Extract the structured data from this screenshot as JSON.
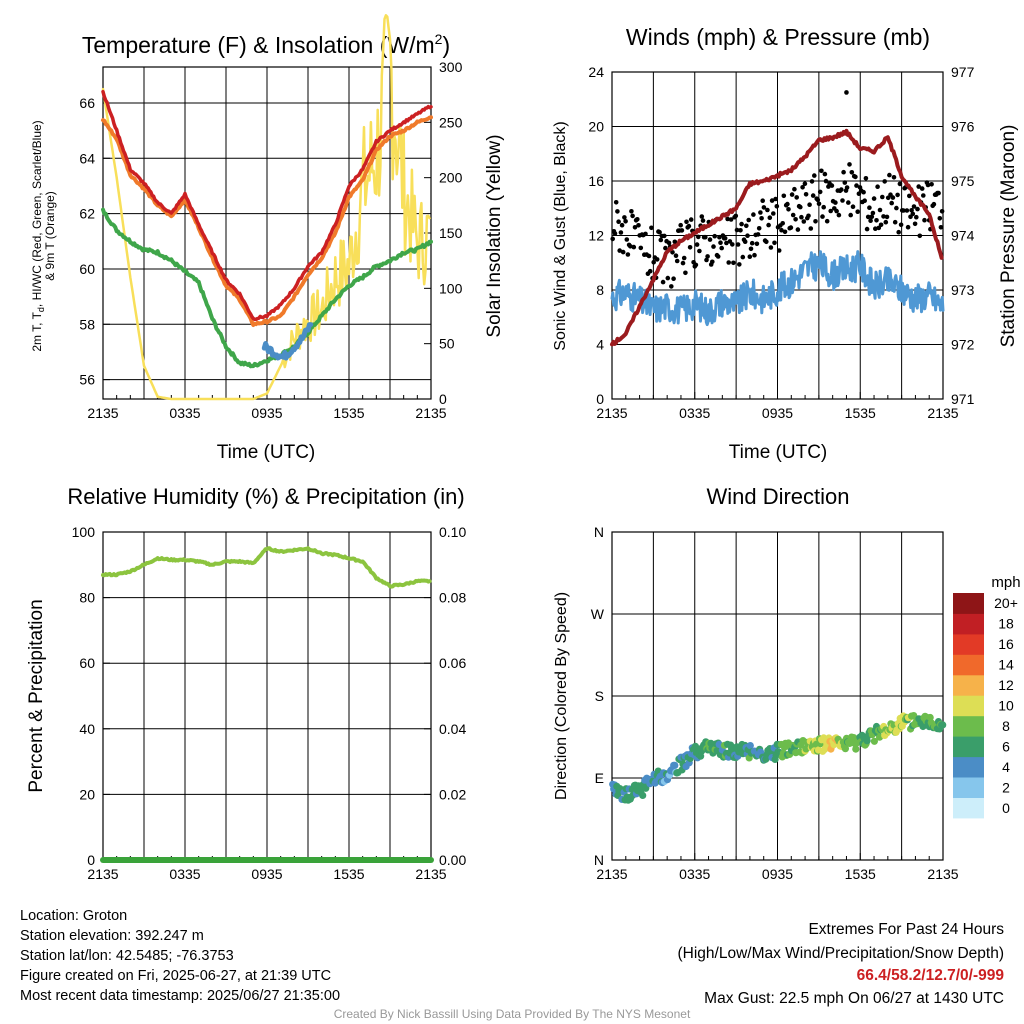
{
  "panels": {
    "temperature": {
      "title": "Temperature (F) & Insolation (W/m",
      "title_sup": "2",
      "title_end": ")",
      "ylabel_lines": [
        "2m T, T",
        "d",
        ", HI/WC (Red, Green, Scarlet/Blue)",
        "& 9m T (Orange)"
      ],
      "y2label": "Solar Insolation (Yellow)",
      "xlabel": "Time (UTC)",
      "xticks": [
        "2135",
        "0335",
        "0935",
        "1535",
        "2135"
      ],
      "yticks": [
        "56",
        "58",
        "60",
        "62",
        "64",
        "66"
      ],
      "y2ticks": [
        "0",
        "50",
        "100",
        "150",
        "200",
        "250",
        "300"
      ]
    },
    "winds": {
      "title": "Winds (mph) & Pressure (mb)",
      "ylabel": "Sonic Wind & Gust (Blue, Black)",
      "y2label": "Station Pressure (Maroon)",
      "xlabel": "Time (UTC)",
      "xticks": [
        "2135",
        "0335",
        "0935",
        "1535",
        "2135"
      ],
      "yticks": [
        "0",
        "4",
        "8",
        "12",
        "16",
        "20",
        "24"
      ],
      "y2ticks": [
        "971",
        "972",
        "973",
        "974",
        "975",
        "976",
        "977"
      ]
    },
    "humidity": {
      "title": "Relative Humidity (%) & Precipitation (in)",
      "ylabel": "Percent & Precipitation",
      "xticks": [
        "2135",
        "0335",
        "0935",
        "1535",
        "2135"
      ],
      "yticks": [
        "0",
        "20",
        "40",
        "60",
        "80",
        "100"
      ],
      "y2ticks": [
        "0.00",
        "0.02",
        "0.04",
        "0.06",
        "0.08",
        "0.10"
      ]
    },
    "direction": {
      "title": "Wind Direction",
      "ylabel": "Direction (Colored By Speed)",
      "xticks": [
        "2135",
        "0335",
        "0935",
        "1535",
        "2135"
      ],
      "yticks": [
        "N",
        "E",
        "S",
        "W",
        "N"
      ],
      "colorbar_title": "mph",
      "colorbar_labels": [
        "0",
        "2",
        "4",
        "6",
        "8",
        "10",
        "12",
        "14",
        "16",
        "18",
        "20+"
      ],
      "colorbar_colors": [
        "#cdeefa",
        "#86c6ec",
        "#4b8dc6",
        "#3a9e6a",
        "#6cbc4c",
        "#ddde55",
        "#f6b24a",
        "#f0692b",
        "#e23a26",
        "#c11f24",
        "#8e1517"
      ]
    }
  },
  "colors": {
    "temp_red": "#cc2022",
    "temp_orange": "#f07a2a",
    "dew_green": "#3fa64a",
    "windchill_blue": "#4b8dc6",
    "solar_yellow": "#f8df5a",
    "wind_blue": "#4f98d4",
    "gust_black": "#000000",
    "pressure_maroon": "#9b1b1e",
    "rh_green": "#8cc43f",
    "precip_green": "#3aa33a",
    "extremes_red": "#cc2022"
  },
  "chart_data": [
    {
      "type": "line",
      "title": "Temperature (F) & Insolation (W/m2)",
      "xlabel": "Time (UTC)",
      "ylabel": "2m T, Td, HI/WC (Red, Green, Scarlet/Blue) & 9m T (Orange)",
      "y2label": "Solar Insolation (Yellow)",
      "x_ticks": [
        "2135",
        "0335",
        "0935",
        "1535",
        "2135"
      ],
      "x_hours": [
        0,
        1,
        2,
        3,
        4,
        5,
        6,
        7,
        8,
        9,
        10,
        11,
        12,
        13,
        14,
        15,
        16,
        17,
        18,
        19,
        20,
        21,
        22,
        23,
        24
      ],
      "ylim": [
        55.3,
        67.3
      ],
      "y2lim": [
        0,
        300
      ],
      "series": [
        {
          "name": "2m T",
          "color": "#cc2022",
          "axis": "left",
          "values": [
            66.4,
            65.0,
            63.6,
            63.1,
            62.4,
            62.0,
            62.7,
            61.6,
            60.6,
            59.6,
            59.1,
            58.2,
            58.3,
            58.7,
            59.3,
            60.1,
            60.6,
            61.6,
            63.0,
            63.6,
            64.6,
            65.0,
            65.3,
            65.6,
            65.9
          ]
        },
        {
          "name": "9m T",
          "color": "#f07a2a",
          "axis": "left",
          "values": [
            65.4,
            64.7,
            63.4,
            62.9,
            62.3,
            61.9,
            62.5,
            61.5,
            60.4,
            59.4,
            58.9,
            58.0,
            58.1,
            58.3,
            59.0,
            59.8,
            60.4,
            61.3,
            62.6,
            63.2,
            64.3,
            64.8,
            65.0,
            65.3,
            65.5
          ]
        },
        {
          "name": "Td",
          "color": "#3fa64a",
          "axis": "left",
          "values": [
            62.1,
            61.4,
            61.0,
            60.7,
            60.6,
            60.3,
            59.9,
            59.5,
            58.2,
            57.2,
            56.6,
            56.5,
            56.7,
            56.9,
            57.2,
            57.7,
            58.3,
            58.9,
            59.4,
            59.7,
            60.1,
            60.3,
            60.6,
            60.7,
            61.0
          ]
        },
        {
          "name": "HI/WC",
          "color": "#4b8dc6",
          "axis": "left",
          "x_hours": [
            11.8,
            12.5,
            13.2,
            14.0,
            14.6,
            15.2
          ],
          "values": [
            57.2,
            57.0,
            56.8,
            57.2,
            57.5,
            58.0
          ]
        },
        {
          "name": "Solar Insolation",
          "color": "#f8df5a",
          "axis": "right",
          "values": [
            280,
            200,
            110,
            30,
            2,
            0,
            0,
            0,
            0,
            0,
            0,
            0,
            5,
            30,
            55,
            70,
            80,
            110,
            120,
            190,
            220,
            300,
            190,
            140,
            150
          ]
        }
      ]
    },
    {
      "type": "line",
      "title": "Winds (mph) & Pressure (mb)",
      "xlabel": "Time (UTC)",
      "ylabel": "Sonic Wind & Gust (Blue, Black)",
      "y2label": "Station Pressure (Maroon)",
      "x_ticks": [
        "2135",
        "0335",
        "0935",
        "1535",
        "2135"
      ],
      "x_hours": [
        0,
        1,
        2,
        3,
        4,
        5,
        6,
        7,
        8,
        9,
        10,
        11,
        12,
        13,
        14,
        15,
        16,
        17,
        18,
        19,
        20,
        21,
        22,
        23,
        24
      ],
      "ylim": [
        0,
        24
      ],
      "y2lim": [
        971,
        977
      ],
      "series": [
        {
          "name": "Sonic Wind",
          "color": "#4f98d4",
          "axis": "left",
          "values": [
            7.5,
            7.8,
            7.2,
            6.6,
            6.8,
            6.5,
            7.0,
            6.4,
            7.2,
            6.9,
            7.8,
            7.3,
            8.0,
            8.6,
            9.5,
            9.9,
            9.1,
            9.5,
            9.8,
            8.2,
            8.6,
            8.0,
            7.4,
            7.6,
            6.8
          ]
        },
        {
          "name": "Gust",
          "color": "#000000",
          "axis": "left",
          "style": "scatter",
          "values": [
            13.0,
            12.5,
            11.0,
            10.5,
            10.0,
            10.8,
            11.5,
            12.0,
            11.0,
            11.6,
            11.8,
            13.0,
            12.8,
            13.5,
            14.2,
            14.8,
            15.0,
            15.3,
            15.0,
            13.8,
            15.0,
            14.0,
            13.5,
            14.2,
            14.5
          ],
          "max": {
            "value": 22.5,
            "x_hour": 17.0
          }
        },
        {
          "name": "Station Pressure",
          "color": "#9b1b1e",
          "axis": "right",
          "values": [
            972.0,
            972.2,
            972.7,
            973.2,
            973.7,
            973.9,
            974.05,
            974.2,
            974.35,
            974.5,
            974.95,
            975.0,
            975.1,
            975.2,
            975.45,
            975.75,
            975.8,
            975.9,
            975.6,
            975.55,
            975.8,
            975.1,
            974.7,
            974.4,
            973.5
          ]
        }
      ]
    },
    {
      "type": "line",
      "title": "Relative Humidity (%) & Precipitation (in)",
      "ylabel": "Percent & Precipitation",
      "x_ticks": [
        "2135",
        "0335",
        "0935",
        "1535",
        "2135"
      ],
      "x_hours": [
        0,
        1,
        2,
        3,
        4,
        5,
        6,
        7,
        8,
        9,
        10,
        11,
        12,
        13,
        14,
        15,
        16,
        17,
        18,
        19,
        20,
        21,
        22,
        23,
        24
      ],
      "ylim": [
        0,
        100
      ],
      "y2lim": [
        0,
        0.1
      ],
      "series": [
        {
          "name": "Relative Humidity",
          "color": "#8cc43f",
          "axis": "left",
          "values": [
            87,
            87,
            88,
            90,
            92,
            91.5,
            91.5,
            91,
            90,
            91,
            91,
            90.5,
            95,
            94,
            94.5,
            95,
            93.5,
            93,
            92,
            91,
            86,
            83.5,
            84,
            85,
            85
          ]
        },
        {
          "name": "Precipitation",
          "color": "#3aa33a",
          "axis": "right",
          "values": [
            0,
            0,
            0,
            0,
            0,
            0,
            0,
            0,
            0,
            0,
            0,
            0,
            0,
            0,
            0,
            0,
            0,
            0,
            0,
            0,
            0,
            0,
            0,
            0,
            0
          ]
        }
      ]
    },
    {
      "type": "scatter",
      "title": "Wind Direction",
      "ylabel": "Direction (Colored By Speed)",
      "x_ticks": [
        "2135",
        "0335",
        "0935",
        "1535",
        "2135"
      ],
      "y_ticks": [
        "N",
        "E",
        "S",
        "W",
        "N"
      ],
      "ylim": [
        0,
        360
      ],
      "x_hours": [
        0,
        1,
        2,
        3,
        4,
        5,
        6,
        7,
        8,
        9,
        10,
        11,
        12,
        13,
        14,
        15,
        16,
        17,
        18,
        19,
        20,
        21,
        22,
        23,
        24
      ],
      "direction_deg": [
        80,
        72,
        76,
        88,
        95,
        105,
        118,
        123,
        121,
        118,
        120,
        115,
        119,
        121,
        124,
        126,
        127,
        126,
        130,
        138,
        142,
        150,
        152,
        151,
        148
      ],
      "speed_mph": [
        6,
        7,
        6,
        6,
        5,
        5,
        6,
        7,
        7,
        6,
        7,
        6,
        7,
        8,
        9,
        10,
        12,
        9,
        8,
        7,
        10,
        10,
        8,
        8,
        8
      ]
    }
  ],
  "footer_left": [
    "Location: Groton",
    "Station elevation: 392.247 m",
    "Station lat/lon: 42.5485; -76.3753",
    "Figure created on Fri, 2025-06-27, at 21:39 UTC",
    "Most recent data timestamp: 2025/06/27 21:35:00"
  ],
  "footer_right": {
    "line1": "Extremes For Past 24 Hours",
    "line2": "(High/Low/Max Wind/Precipitation/Snow Depth)",
    "extremes": "66.4/58.2/12.7/0/-999",
    "max_gust": "Max Gust: 22.5 mph On 06/27 at 1430 UTC"
  },
  "credit": "Created By Nick Bassill Using Data Provided By The NYS Mesonet"
}
